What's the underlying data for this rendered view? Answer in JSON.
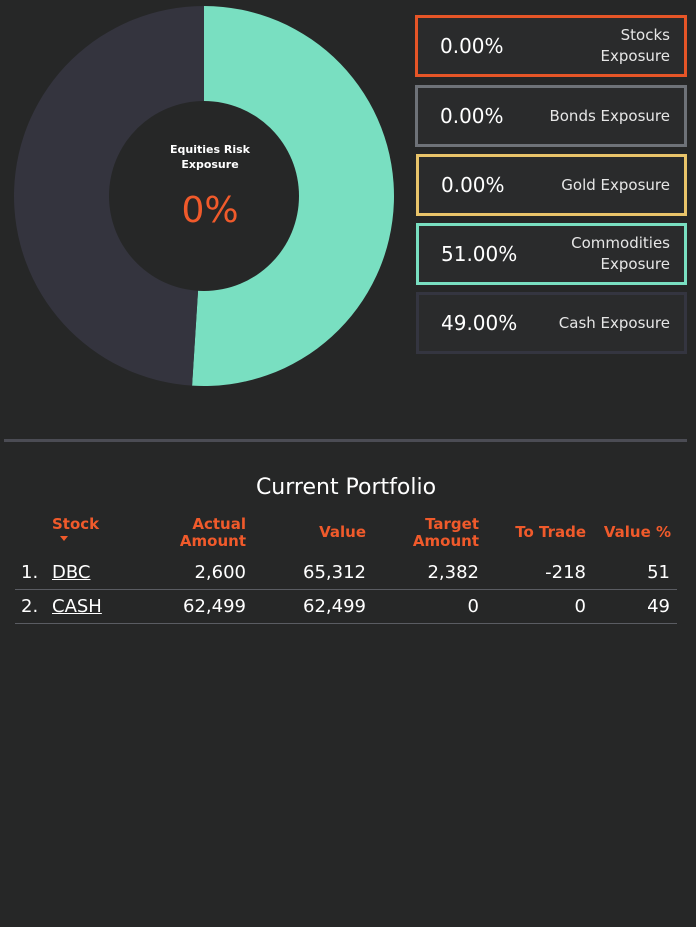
{
  "donut": {
    "title": "Equities Risk Exposure",
    "value_label": "0%",
    "segments": [
      {
        "name": "Commodities",
        "value": 51,
        "color": "#79dfc1"
      },
      {
        "name": "Cash",
        "value": 49,
        "color": "#34343e"
      }
    ],
    "hole_color": "#262727"
  },
  "exposures": [
    {
      "pct": "0.00%",
      "label": "Stocks Exposure",
      "border": "#e65527"
    },
    {
      "pct": "0.00%",
      "label": "Bonds Exposure",
      "border": "#6e7278"
    },
    {
      "pct": "0.00%",
      "label": "Gold Exposure",
      "border": "#e9c46a"
    },
    {
      "pct": "51.00%",
      "label": "Commodities Exposure",
      "border": "#79dfc1"
    },
    {
      "pct": "49.00%",
      "label": "Cash Exposure",
      "border": "#343540"
    }
  ],
  "portfolio": {
    "title": "Current Portfolio",
    "headers": {
      "stock": "Stock",
      "actual_amount": "Actual Amount",
      "value": "Value",
      "target_amount": "Target Amount",
      "to_trade": "To Trade",
      "value_pct": "Value %"
    },
    "rows": [
      {
        "index": "1.",
        "stock": "DBC",
        "actual_amount": "2,600",
        "value": "65,312",
        "target_amount": "2,382",
        "to_trade": "-218",
        "value_pct": "51"
      },
      {
        "index": "2.",
        "stock": "CASH",
        "actual_amount": "62,499",
        "value": "62,499",
        "target_amount": "0",
        "to_trade": "0",
        "value_pct": "49"
      }
    ]
  }
}
